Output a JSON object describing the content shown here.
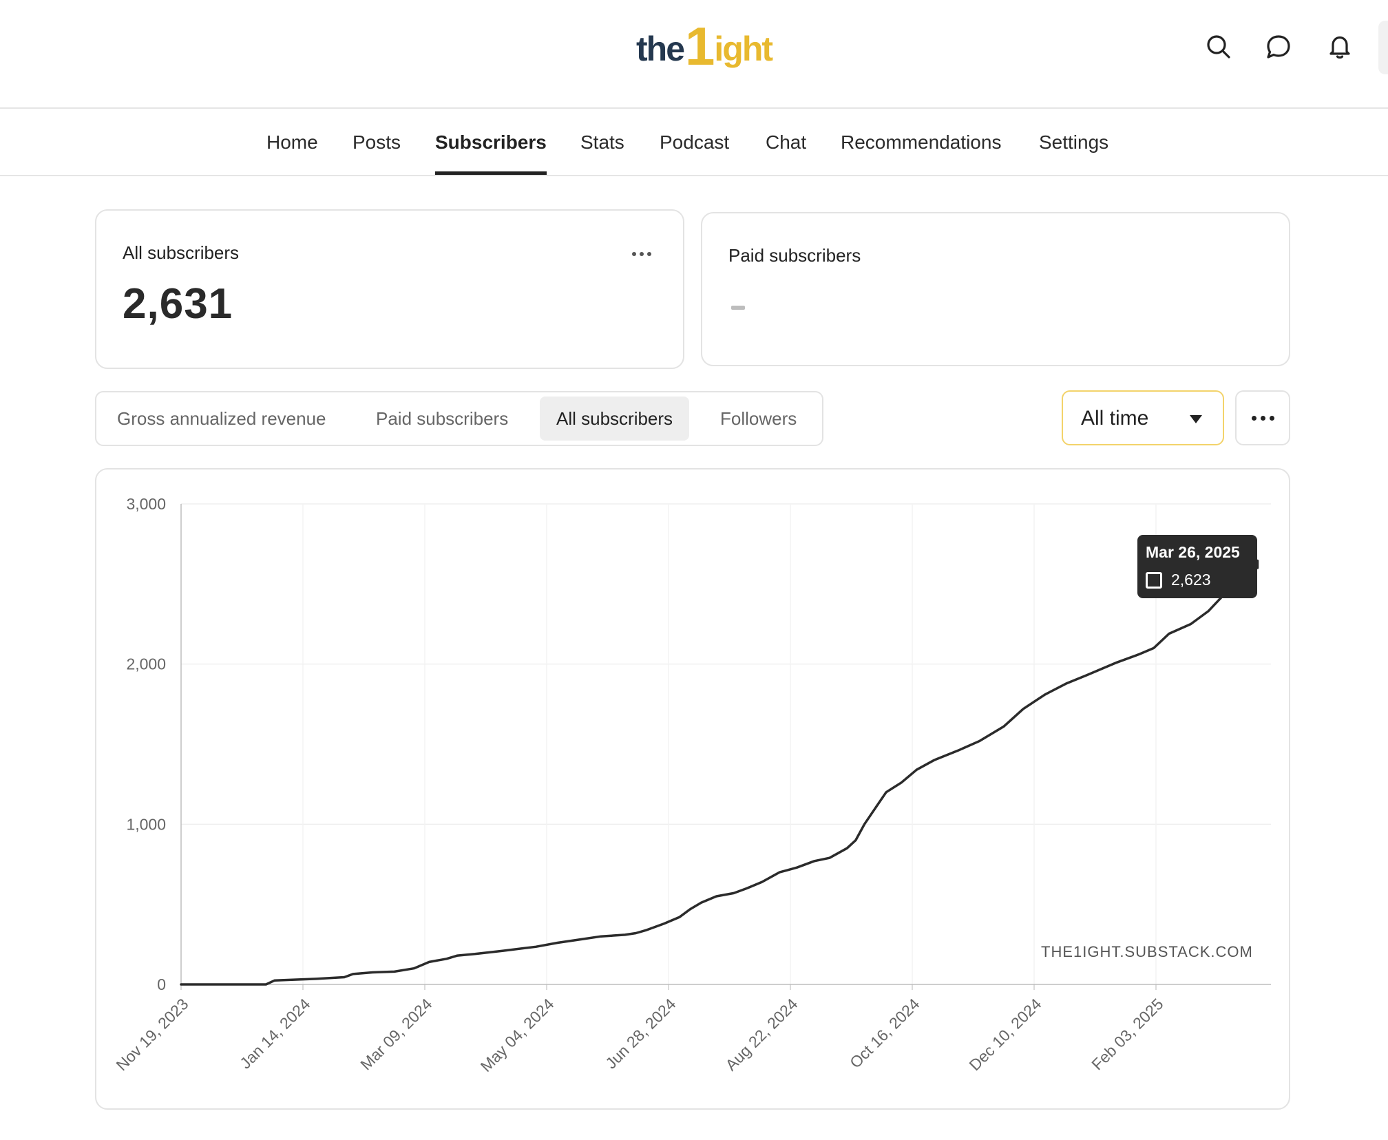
{
  "header": {
    "logo": {
      "part_a": "the",
      "part_b": "1",
      "part_c": "ight"
    },
    "icons": [
      "search-icon",
      "chat-bubble-icon",
      "bell-icon"
    ]
  },
  "nav": {
    "items": [
      "Home",
      "Posts",
      "Subscribers",
      "Stats",
      "Podcast",
      "Chat",
      "Recommendations",
      "Settings"
    ],
    "active": "Subscribers"
  },
  "cards": {
    "all_subscribers": {
      "title": "All subscribers",
      "value": "2,631"
    },
    "paid_subscribers": {
      "title": "Paid subscribers",
      "value": "-"
    }
  },
  "tabs": {
    "items": [
      "Gross annualized revenue",
      "Paid subscribers",
      "All subscribers",
      "Followers"
    ],
    "active": "All subscribers"
  },
  "range": {
    "selected": "All time"
  },
  "colors": {
    "line": "#2b2b2b",
    "accent_border": "#f3d36b",
    "grid": "#efefef"
  },
  "chart_data": {
    "type": "line",
    "x_start": "2023-11-19",
    "x_end": "2025-03-26",
    "x_tick_labels": [
      "Nov 19, 2023",
      "Jan 14, 2024",
      "Mar 09, 2024",
      "May 04, 2024",
      "Jun 28, 2024",
      "Aug 22, 2024",
      "Oct 16, 2024",
      "Dec 10, 2024",
      "Feb 03, 2025"
    ],
    "y_tick_labels": [
      "0",
      "1,000",
      "2,000",
      "3,000"
    ],
    "ylim": [
      0,
      3000
    ],
    "grid": true,
    "series": [
      {
        "points": [
          [
            "2023-11-19",
            0
          ],
          [
            "2023-12-28",
            0
          ],
          [
            "2024-01-01",
            25
          ],
          [
            "2024-01-20",
            35
          ],
          [
            "2024-02-02",
            45
          ],
          [
            "2024-02-06",
            65
          ],
          [
            "2024-02-15",
            75
          ],
          [
            "2024-02-25",
            80
          ],
          [
            "2024-03-05",
            100
          ],
          [
            "2024-03-12",
            140
          ],
          [
            "2024-03-20",
            160
          ],
          [
            "2024-03-25",
            180
          ],
          [
            "2024-04-02",
            190
          ],
          [
            "2024-04-15",
            210
          ],
          [
            "2024-04-30",
            235
          ],
          [
            "2024-05-10",
            260
          ],
          [
            "2024-05-20",
            280
          ],
          [
            "2024-05-30",
            300
          ],
          [
            "2024-06-10",
            310
          ],
          [
            "2024-06-15",
            320
          ],
          [
            "2024-06-20",
            340
          ],
          [
            "2024-06-28",
            380
          ],
          [
            "2024-07-05",
            420
          ],
          [
            "2024-07-10",
            470
          ],
          [
            "2024-07-15",
            510
          ],
          [
            "2024-07-22",
            550
          ],
          [
            "2024-07-30",
            570
          ],
          [
            "2024-08-05",
            600
          ],
          [
            "2024-08-12",
            640
          ],
          [
            "2024-08-20",
            700
          ],
          [
            "2024-08-28",
            730
          ],
          [
            "2024-09-05",
            770
          ],
          [
            "2024-09-12",
            790
          ],
          [
            "2024-09-20",
            850
          ],
          [
            "2024-09-24",
            900
          ],
          [
            "2024-09-28",
            1000
          ],
          [
            "2024-10-02",
            1080
          ],
          [
            "2024-10-08",
            1200
          ],
          [
            "2024-10-15",
            1260
          ],
          [
            "2024-10-22",
            1340
          ],
          [
            "2024-10-30",
            1400
          ],
          [
            "2024-11-10",
            1460
          ],
          [
            "2024-11-20",
            1520
          ],
          [
            "2024-12-01",
            1610
          ],
          [
            "2024-12-10",
            1720
          ],
          [
            "2024-12-20",
            1810
          ],
          [
            "2024-12-30",
            1880
          ],
          [
            "2025-01-08",
            1930
          ],
          [
            "2025-01-15",
            1970
          ],
          [
            "2025-01-22",
            2010
          ],
          [
            "2025-02-01",
            2060
          ],
          [
            "2025-02-08",
            2100
          ],
          [
            "2025-02-15",
            2190
          ],
          [
            "2025-02-25",
            2250
          ],
          [
            "2025-03-05",
            2330
          ],
          [
            "2025-03-12",
            2430
          ],
          [
            "2025-03-18",
            2480
          ],
          [
            "2025-03-21",
            2520
          ],
          [
            "2025-03-26",
            2623
          ]
        ]
      }
    ],
    "tooltip": {
      "date": "Mar 26, 2025",
      "value": "2,623"
    },
    "annotation": "THE1IGHT.SUBSTACK.COM"
  }
}
